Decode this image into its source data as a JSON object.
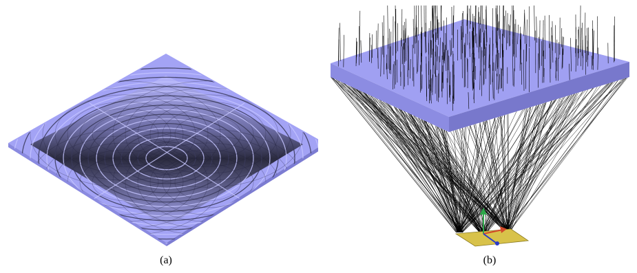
{
  "figure": {
    "panels": [
      {
        "id": "a",
        "caption": "(a)"
      },
      {
        "id": "b",
        "caption": "(b)"
      }
    ]
  },
  "colors": {
    "plate_face": "#9c9cf2",
    "plate_side": "#8686dc",
    "ring_dark": "#2c2c44",
    "rays": "#000000",
    "detector": "#d8c24a",
    "background": "#ffffff"
  }
}
